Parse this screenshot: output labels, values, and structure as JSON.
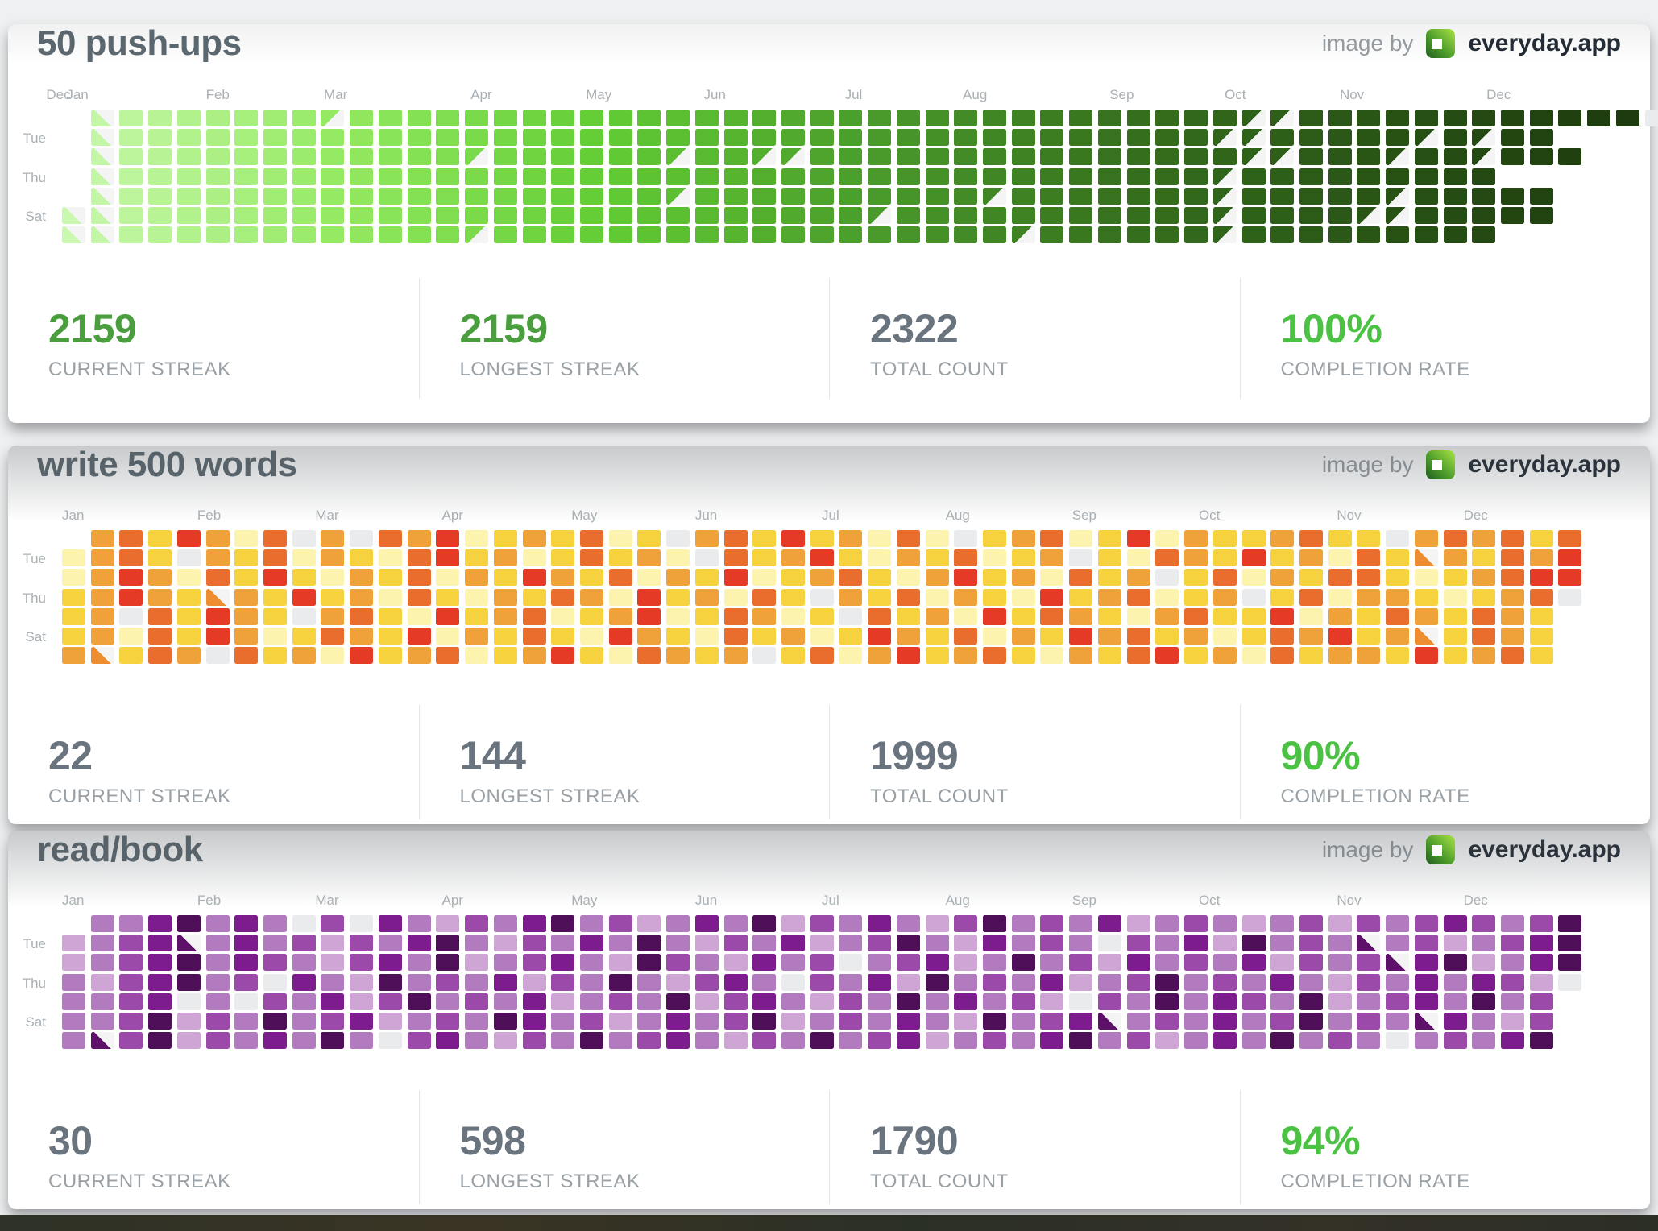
{
  "attribution": {
    "prefix": "image by",
    "brand": "everyday.app"
  },
  "colors": {
    "green": "#4a9e3e",
    "bright_green": "#4cc244",
    "gray": "#6a747e",
    "empty": "#e9ebec",
    "triangle_bg": "#f4f4f5",
    "page_background": "#eef0f1",
    "card_background": "#ffffff",
    "title_text": "#5c6870",
    "label_text": "#a9b0b4",
    "footer_strip": "#30332a"
  },
  "day_labels": [
    "Tue",
    "Thu",
    "Sat"
  ],
  "day_label_rows": [
    1,
    3,
    5
  ],
  "cell_encoding": "7 rows = weekdays Mon..Sun top to bottom, one char per week-column. '#'=done (color from date gradient), '1'-'5'=intensity level from palette (1=lightest), 'b'=partial day (bottom-left triangle), '/'=skipped day (top-left triangle), 'x'=missed/empty (gray), '.'=no cell",
  "chart_data": [
    {
      "type": "heatmap",
      "title": "50 push-ups",
      "legend_note": "color darkens continuously through the year (streak never broken)",
      "gradient": [
        "#c9f8ae",
        "#94ea62",
        "#63cc34",
        "#4a9c2b",
        "#36701d",
        "#285214",
        "#1c380d"
      ],
      "months": [
        {
          "label": "Dec",
          "col": -0.55
        },
        {
          "label": "Jan",
          "col": 0.15
        },
        {
          "label": "Feb",
          "col": 5.0
        },
        {
          "label": "Mar",
          "col": 9.1
        },
        {
          "label": "Apr",
          "col": 14.2
        },
        {
          "label": "May",
          "col": 18.2
        },
        {
          "label": "Jun",
          "col": 22.3
        },
        {
          "label": "Jul",
          "col": 27.2
        },
        {
          "label": "Aug",
          "col": 31.3
        },
        {
          "label": "Sep",
          "col": 36.4
        },
        {
          "label": "Oct",
          "col": 40.4
        },
        {
          "label": "Nov",
          "col": 44.4
        },
        {
          "label": "Dec",
          "col": 49.5
        }
      ],
      "grid_rows": [
        ".b#######/###############################//############x",
        ".b######################################//#####/#/##.",
        ".b############/######/##//###############//###/##/###.",
        ".b######################################/#########.",
        ".b###################/##########/#######/#####/#####.",
        "bb##########################/###########/####//#####.",
        "bb############/##################/######/#########."
      ],
      "stats": [
        {
          "value": "2159",
          "label": "CURRENT STREAK",
          "color": "green"
        },
        {
          "value": "2159",
          "label": "LONGEST STREAK",
          "color": "green"
        },
        {
          "value": "2322",
          "label": "TOTAL COUNT",
          "color": "gray"
        },
        {
          "value": "100%",
          "label": "COMPLETION RATE",
          "color": "bright_green"
        }
      ]
    },
    {
      "type": "heatmap",
      "title": "write 500 words",
      "legend_note": "yellow-to-red intensity per day, gray = missed",
      "palette": {
        "1": "#fcf4ae",
        "2": "#f6d33e",
        "3": "#f0a23a",
        "4": "#e96d2d",
        "5": "#e53a25"
      },
      "triangle_color": "#ee8c30",
      "months": [
        {
          "label": "Jan",
          "col": 0
        },
        {
          "label": "Feb",
          "col": 4.7
        },
        {
          "label": "Mar",
          "col": 8.8
        },
        {
          "label": "Apr",
          "col": 13.2
        },
        {
          "label": "May",
          "col": 17.7
        },
        {
          "label": "Jun",
          "col": 22.0
        },
        {
          "label": "Jul",
          "col": 26.4
        },
        {
          "label": "Aug",
          "col": 30.7
        },
        {
          "label": "Sep",
          "col": 35.1
        },
        {
          "label": "Oct",
          "col": 39.5
        },
        {
          "label": "Nov",
          "col": 44.3
        },
        {
          "label": "Dec",
          "col": 48.7
        }
      ],
      "grid_rows": [
        ".3425314x3x4351232412x342523141x23412513223422x343424",
        "1342x32413214523124231x423521324123x21432523142b32435",
        "1353142521324132532413251234213523142 3x24132442123455",
        "23532b32523142132431523142x3241321523412 3x2413321234x",
        "23x42532x342152341235124312x423152432134225132432432.",
        "23142531243251324215321423125324132534231243523b2432.",
        "3b243x42315234123521 4323x2413523421324523142332523 42."
      ],
      "stats": [
        {
          "value": "22",
          "label": "CURRENT STREAK",
          "color": "gray"
        },
        {
          "value": "144",
          "label": "LONGEST STREAK",
          "color": "gray"
        },
        {
          "value": "1999",
          "label": "TOTAL COUNT",
          "color": "gray"
        },
        {
          "value": "90%",
          "label": "COMPLETION RATE",
          "color": "bright_green"
        }
      ]
    },
    {
      "type": "heatmap",
      "title": "read/book",
      "legend_note": "light-to-dark purple intensity per day, gray = missed",
      "palette": {
        "1": "#cfa5d6",
        "2": "#b27abf",
        "3": "#9b4aaa",
        "4": "#7d1d8d",
        "5": "#4e0f58"
      },
      "triangle_color": "#5d1168",
      "months": [
        {
          "label": "Jan",
          "col": 0
        },
        {
          "label": "Feb",
          "col": 4.7
        },
        {
          "label": "Mar",
          "col": 8.8
        },
        {
          "label": "Apr",
          "col": 13.2
        },
        {
          "label": "May",
          "col": 17.7
        },
        {
          "label": "Jun",
          "col": 22.0
        },
        {
          "label": "Jul",
          "col": 26.4
        },
        {
          "label": "Aug",
          "col": 30.7
        },
        {
          "label": "Sep",
          "col": 35.1
        },
        {
          "label": "Oct",
          "col": 39.5
        },
        {
          "label": "Nov",
          "col": 44.3
        },
        {
          "label": "Dec",
          "col": 48.7
        }
      ],
      "grid_rows": [
        ".2245242x3x4213245231242513242135232412321231323 43235",
        "1234b2423132452132425213241235214232x32415232b2312345",
        "12345243213425123421 5321423x234125231423241323b451245",
        "2134523x42152324132521342x32415232412352324213242431x",
        "2234x2x3241352324123251342132524231x32524325123 42523.",
        "22351325234123254231242351232421 5234b2324235232b4213.",
        "2b351324252x342132523421325234123245231242 5232x23245."
      ],
      "stats": [
        {
          "value": "30",
          "label": "CURRENT STREAK",
          "color": "gray"
        },
        {
          "value": "598",
          "label": "LONGEST STREAK",
          "color": "gray"
        },
        {
          "value": "1790",
          "label": "TOTAL COUNT",
          "color": "gray"
        },
        {
          "value": "94%",
          "label": "COMPLETION RATE",
          "color": "bright_green"
        }
      ]
    }
  ]
}
